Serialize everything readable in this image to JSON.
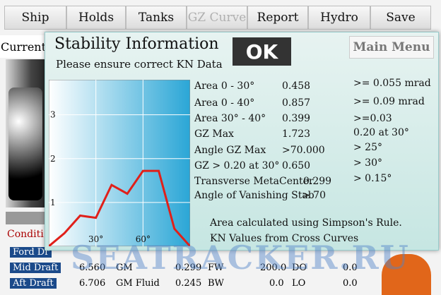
{
  "tabs": [
    {
      "label": "Ship"
    },
    {
      "label": "Holds"
    },
    {
      "label": "Tanks"
    },
    {
      "label": "GZ Curve"
    },
    {
      "label": "Report"
    },
    {
      "label": "Hydro"
    },
    {
      "label": "Save"
    }
  ],
  "current_label": "Current",
  "condition_label": "Conditi",
  "draft_rows": [
    {
      "label": "Ford Dr",
      "val": "",
      "gm_label": "",
      "gm_val": "",
      "tank": "",
      "tank_val": "",
      "tank2": "",
      "tank2_val": ""
    },
    {
      "label": "Mid Draft",
      "val": "6.560",
      "gm_label": "GM",
      "gm_val": "0.299",
      "tank": "FW",
      "tank_val": "200.0",
      "tank2": "DO",
      "tank2_val": "0.0"
    },
    {
      "label": "Aft Draft",
      "val": "6.706",
      "gm_label": "GM Fluid",
      "gm_val": "0.245",
      "tank": "BW",
      "tank_val": "0.0",
      "tank2": "LO",
      "tank2_val": "0.0"
    }
  ],
  "dialog": {
    "title": "Stability Information",
    "subtitle": "Please ensure correct KN Data",
    "ok_label": "OK",
    "main_menu_label": "Main Menu",
    "stats": [
      {
        "label": "Area 0 - 30°",
        "value": "0.458",
        "criterion": ">= 0.055 mrad"
      },
      {
        "label": "Area 0 - 40°",
        "value": "0.857",
        "criterion": ">= 0.09 mrad"
      },
      {
        "label": "Area 30° - 40°",
        "value": "0.399",
        "criterion": ">=0.03"
      },
      {
        "label": "GZ Max",
        "value": "1.723",
        "criterion": "0.20 at 30°"
      },
      {
        "label": "Angle GZ Max",
        "value": ">70.000",
        "criterion": "> 25°"
      },
      {
        "label": "GZ > 0.20 at 30°",
        "value": "0.650",
        "criterion": "> 30°"
      },
      {
        "label": "Transverse MetaCenter",
        "value": "0.299",
        "criterion": "> 0.15°"
      },
      {
        "label": "Angle of Vanishing Stab",
        "value": "> 70",
        "criterion": ""
      }
    ],
    "notes": [
      "Area calculated using Simpson's Rule.",
      "KN Values from Cross Curves"
    ]
  },
  "watermark": "SEATRACKER.RU",
  "colors": {
    "curve": "#e0201a",
    "panel_top": "#e7f3f1",
    "panel_bottom": "#c6e6e2",
    "watermark": "#5082c8"
  },
  "chart_data": {
    "type": "line",
    "title": "",
    "xlabel": "",
    "ylabel": "",
    "x_ticks": [
      "30°",
      "60°"
    ],
    "y_ticks": [
      "1",
      "2",
      "3"
    ],
    "xlim": [
      0,
      90
    ],
    "ylim": [
      0,
      3.8
    ],
    "series": [
      {
        "x": [
          0,
          10,
          20,
          30,
          40,
          50,
          60,
          70,
          80,
          90
        ],
        "y": [
          0.0,
          0.3,
          0.7,
          0.65,
          1.4,
          1.2,
          1.72,
          1.72,
          0.4,
          0.0
        ]
      }
    ]
  }
}
